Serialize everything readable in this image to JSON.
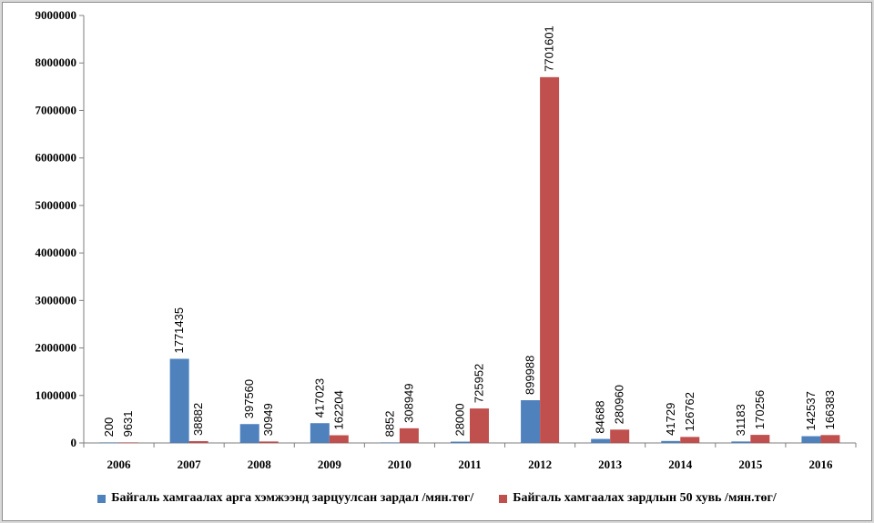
{
  "chart_data": {
    "type": "bar",
    "categories": [
      "2006",
      "2007",
      "2008",
      "2009",
      "2010",
      "2011",
      "2012",
      "2013",
      "2014",
      "2015",
      "2016"
    ],
    "series": [
      {
        "name": "Байгаль хамгаалах арга хэмжээнд зарцуулсан зардал /мян.төг/",
        "color": "#4f81bd",
        "values": [
          200,
          1771435,
          397560,
          417023,
          8852,
          28000,
          899988,
          84688,
          41729,
          31183,
          142537
        ]
      },
      {
        "name": "Байгаль хамгаалах зардлын 50 хувь /мян.төг/",
        "color": "#c0504d",
        "values": [
          9631,
          38882,
          30949,
          162204,
          308949,
          725952,
          7701601,
          280960,
          126762,
          170256,
          166383
        ]
      }
    ],
    "yticks": [
      "0",
      "1000000",
      "2000000",
      "3000000",
      "4000000",
      "5000000",
      "6000000",
      "7000000",
      "8000000",
      "9000000"
    ],
    "ylim": [
      0,
      9000000
    ],
    "title": "",
    "xlabel": "",
    "ylabel": "",
    "grid": false,
    "legend_position": "bottom"
  }
}
